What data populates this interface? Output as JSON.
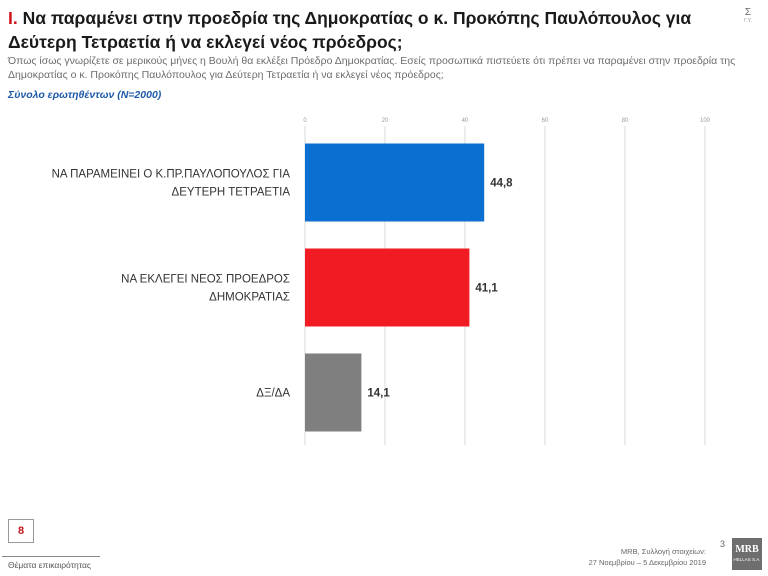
{
  "header": {
    "roman": "I.",
    "title": "Να παραμένει στην προεδρία της Δημοκρατίας ο κ. Προκόπης Παυλόπουλος για Δεύτερη Τετραετία ή να εκλεγεί νέος πρόεδρος;",
    "side_mark": "Σ",
    "side_mark_small": "Γ.Υ.",
    "question": "Όπως ίσως γνωρίζετε σε μερικούς μήνες η Βουλή θα εκλέξει Πρόεδρο Δημοκρατίας. Εσείς προσωπικά πιστεύετε ότι πρέπει να παραμένει στην προεδρία της Δημοκρατίας ο κ. Προκόπης Παυλόπουλος για Δεύτερη Τετραετία ή να εκλεγεί νέος πρόεδρος;",
    "base": "Σύνολο ερωτηθέντων (N=2000)"
  },
  "chart_data": {
    "type": "bar",
    "orientation": "horizontal",
    "categories": [
      "ΝΑ ΠΑΡΑΜΕΙΝΕΙ Ο Κ.ΠΡ.ΠΑΥΛΟΠΟΥΛΟΣ ΓΙΑ ΔΕΥΤΕΡΗ ΤΕΤΡΑΕΤΙΑ",
      "ΝΑ ΕΚΛΕΓΕΙ ΝΕΟΣ ΠΡΟΕΔΡΟΣ ΔΗΜΟΚΡΑΤΙΑΣ",
      "ΔΞ/ΔΑ"
    ],
    "category_lines": [
      [
        "ΝΑ ΠΑΡΑΜΕΙΝΕΙ Ο Κ.ΠΡ.ΠΑΥΛΟΠΟΥΛΟΣ ΓΙΑ",
        "ΔΕΥΤΕΡΗ ΤΕΤΡΑΕΤΙΑ"
      ],
      [
        "ΝΑ ΕΚΛΕΓΕΙ ΝΕΟΣ ΠΡΟΕΔΡΟΣ",
        "ΔΗΜΟΚΡΑΤΙΑΣ"
      ],
      [
        "ΔΞ/ΔΑ"
      ]
    ],
    "values": [
      44.8,
      41.1,
      14.1
    ],
    "value_labels": [
      "44,8",
      "41,1",
      "14,1"
    ],
    "colors": [
      "#0a6fd1",
      "#f01b23",
      "#7f7f7f"
    ],
    "xlim": [
      0,
      100
    ],
    "xticks": [
      0,
      20,
      40,
      60,
      80,
      100
    ],
    "grid": true
  },
  "footer": {
    "badge": "8",
    "left_text": "Θέματα επικαιρότητας",
    "page_number": "3",
    "source_line1": "MRB, Συλλογή στοιχείων:",
    "source_line2": "27 Νοεμβρίου – 5 Δεκεμβρίου 2019",
    "logo_text": "MRB",
    "logo_sub": "HELLAS S.A."
  }
}
